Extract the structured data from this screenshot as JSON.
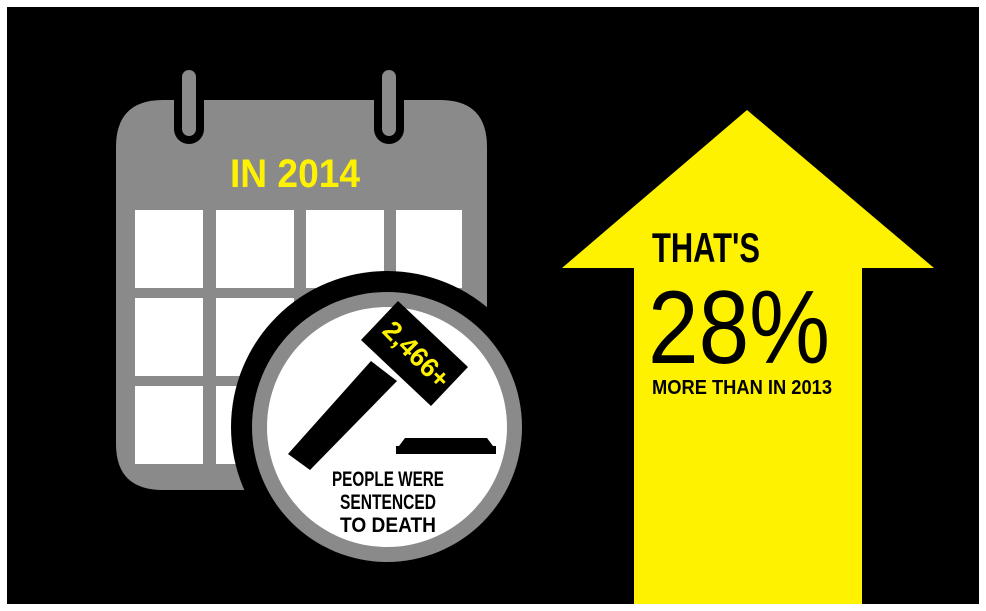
{
  "calendar": {
    "year_label": "IN 2014"
  },
  "gavel": {
    "count_label": "2,466+"
  },
  "badge": {
    "line1": "PEOPLE WERE",
    "line2": "SENTENCED",
    "line3": "TO DEATH"
  },
  "arrow": {
    "lead": "THAT'S",
    "percent": "28%",
    "caption": "MORE THAN IN 2013"
  },
  "colors": {
    "background": "#000000",
    "accent_yellow": "#FFF200",
    "calendar_gray": "#8A8A8A",
    "white": "#FFFFFF"
  }
}
